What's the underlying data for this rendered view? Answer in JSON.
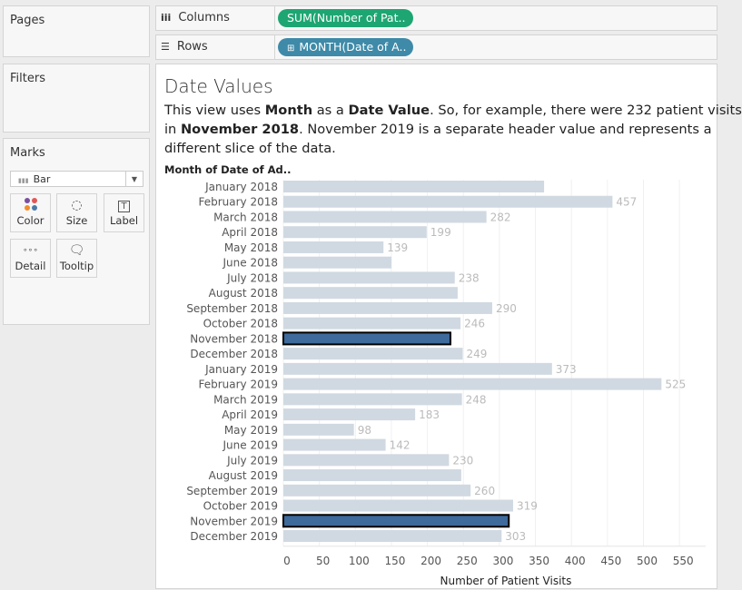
{
  "left_panel": {
    "pages_title": "Pages",
    "filters_title": "Filters",
    "marks_title": "Marks",
    "mark_type": "Bar",
    "mark_buttons": [
      {
        "label": "Color",
        "icon": "color-dots-icon"
      },
      {
        "label": "Size",
        "icon": "size-icon"
      },
      {
        "label": "Label",
        "icon": "label-icon"
      },
      {
        "label": "Detail",
        "icon": "detail-icon"
      },
      {
        "label": "Tooltip",
        "icon": "tooltip-icon"
      }
    ]
  },
  "shelves": {
    "columns_label": "Columns",
    "columns_pill": "SUM(Number of Pat..",
    "columns_pill_color": "#1ea672",
    "rows_label": "Rows",
    "rows_pill": "MONTH(Date of A..",
    "rows_pill_color": "#3e8aa8"
  },
  "view": {
    "title": "Date Values",
    "caption": {
      "l1a": "This view uses ",
      "l1b": "Month",
      "l1c": " as a ",
      "l1d": "Date Value",
      "l1e": ".  So, for example, there were 232 patient visits",
      "l2a": "in ",
      "l2b": "November 2018",
      "l2c": ".  November 2019 is a separate header value and represents a",
      "l3": "different slice of the data."
    },
    "row_header": "Month of Date of Ad.."
  },
  "chart_data": {
    "type": "bar",
    "orientation": "horizontal",
    "categories": [
      "January 2018",
      "February 2018",
      "March 2018",
      "April 2018",
      "May 2018",
      "June 2018",
      "July 2018",
      "August 2018",
      "September 2018",
      "October 2018",
      "November 2018",
      "December 2018",
      "January 2019",
      "February 2019",
      "March 2019",
      "April 2019",
      "May 2019",
      "June 2019",
      "July 2019",
      "August 2019",
      "September 2019",
      "October 2019",
      "November 2019",
      "December 2019"
    ],
    "values": [
      362,
      457,
      282,
      199,
      139,
      150,
      238,
      242,
      290,
      246,
      232,
      249,
      373,
      525,
      248,
      183,
      98,
      142,
      230,
      247,
      260,
      319,
      313,
      303
    ],
    "data_labels": [
      null,
      "457",
      "282",
      "199",
      "139",
      null,
      "238",
      null,
      "290",
      "246",
      null,
      "249",
      "373",
      "525",
      "248",
      "183",
      "98",
      "142",
      "230",
      null,
      "260",
      "319",
      null,
      "303"
    ],
    "highlighted": [
      "November 2018",
      "November 2019"
    ],
    "xlabel": "Number of Patient Visits",
    "ylabel": "Month of Date of Ad..",
    "xlim": [
      0,
      580
    ],
    "xticks": [
      0,
      50,
      100,
      150,
      200,
      250,
      300,
      350,
      400,
      450,
      500,
      550
    ],
    "grid": "vertical",
    "bar_color": "#d0d9e1",
    "highlight_color": "#3e6a9c"
  }
}
